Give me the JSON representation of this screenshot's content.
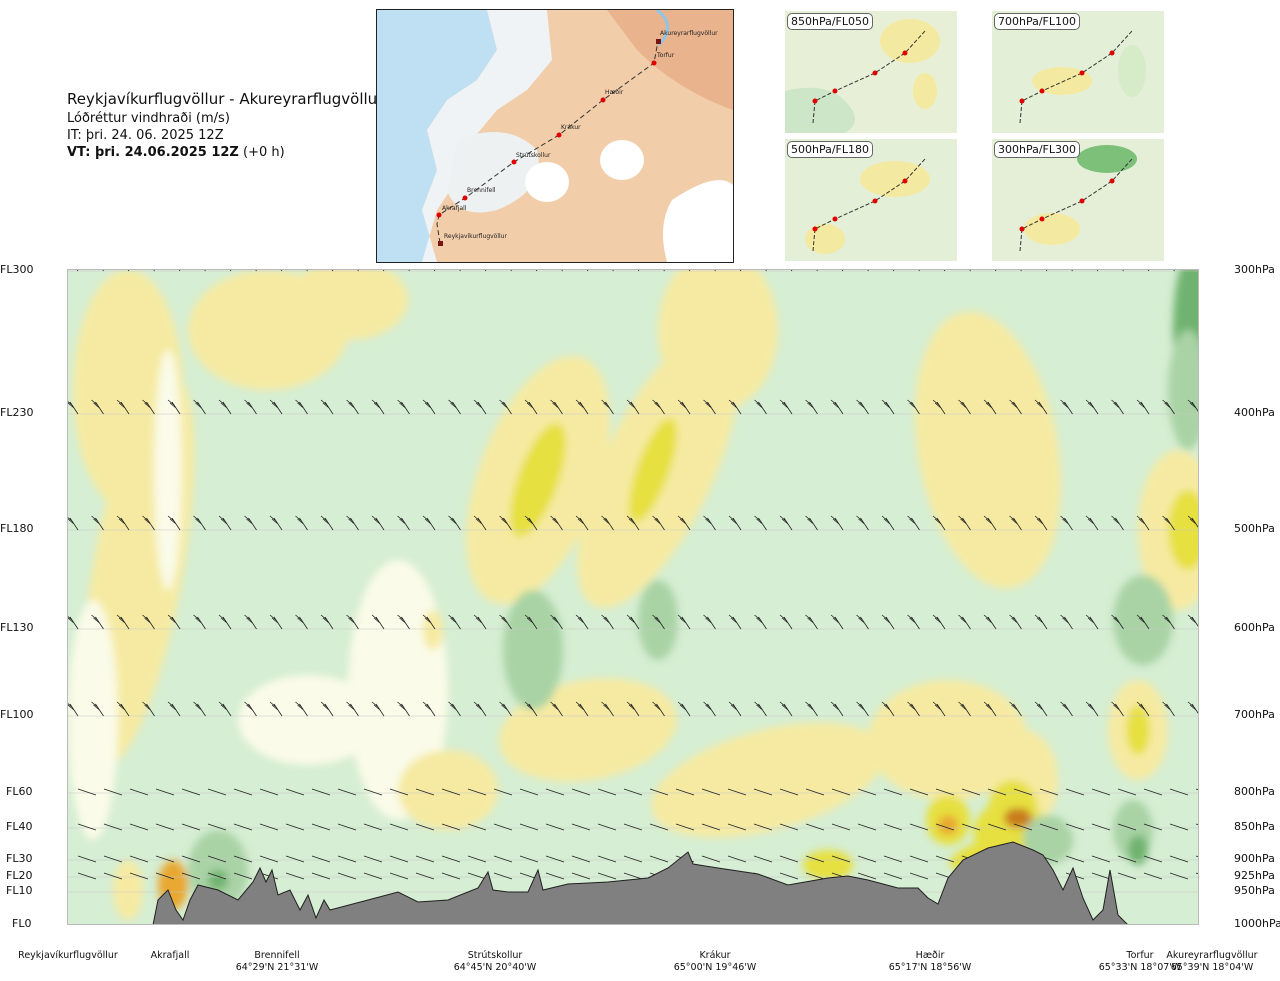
{
  "header": {
    "title": "Reykjavíkurflugvöllur - Akureyrarflugvöllur",
    "subtitle": "Lóðréttur vindhraði (m/s)",
    "issue_time": "IT: þri. 24. 06. 2025 12Z",
    "valid_prefix": "VT: þri. 24.06.2025 12Z",
    "valid_suffix": "(+0 h)"
  },
  "route_map": {
    "waypoints": [
      "Akureyrarflugvöllur",
      "Torfur",
      "Hæðir",
      "Krákur",
      "Strútskollur",
      "Brennifell",
      "Akrafjall",
      "Reykjavíkurflugvöllur"
    ]
  },
  "level_maps": [
    {
      "label": "850hPa/FL050"
    },
    {
      "label": "700hPa/FL100"
    },
    {
      "label": "500hPa/FL180"
    },
    {
      "label": "300hPa/FL300"
    }
  ],
  "chart_data": {
    "type": "heatmap",
    "title": "Lóðréttur vindhraði (m/s)",
    "flight_levels": [
      "FL300",
      "FL230",
      "FL180",
      "FL130",
      "FL100",
      "FL60",
      "FL40",
      "FL30",
      "FL20",
      "FL10",
      "FL0"
    ],
    "pressure_levels": [
      "300hPa",
      "400hPa",
      "500hPa",
      "600hPa",
      "700hPa",
      "800hPa",
      "850hPa",
      "900hPa",
      "925hPa",
      "950hPa",
      "1000hPa"
    ],
    "pressure_values_hpa": [
      300,
      400,
      500,
      600,
      700,
      800,
      850,
      900,
      925,
      950,
      1000
    ],
    "ylim_hpa": [
      1000,
      300
    ],
    "stations": [
      {
        "name": "Reykjavíkurflugvöllur",
        "coord": ""
      },
      {
        "name": "Akrafjall",
        "coord": ""
      },
      {
        "name": "Brennifell",
        "coord": "64°29'N 21°31'W"
      },
      {
        "name": "Strútskollur",
        "coord": "64°45'N 20°40'W"
      },
      {
        "name": "Krákur",
        "coord": "65°00'N 19°46'W"
      },
      {
        "name": "Hæðir",
        "coord": "65°17'N 18°56'W"
      },
      {
        "name": "Torfur",
        "coord": "65°33'N 18°07'W"
      },
      {
        "name": "Akureyrarflugvöllur",
        "coord": "65°39'N 18°04'W"
      }
    ],
    "colors": {
      "strong_down": "#6fb36f",
      "mod_down": "#a9d3a5",
      "weak_down": "#d3ecd1",
      "near_zero": "#fafbe8",
      "weak_up": "#f6eaa2",
      "mod_up": "#e6e040",
      "strong_up": "#e8a831",
      "very_strong_up": "#c97a1e",
      "terrain": "#808080"
    },
    "grid": true
  }
}
